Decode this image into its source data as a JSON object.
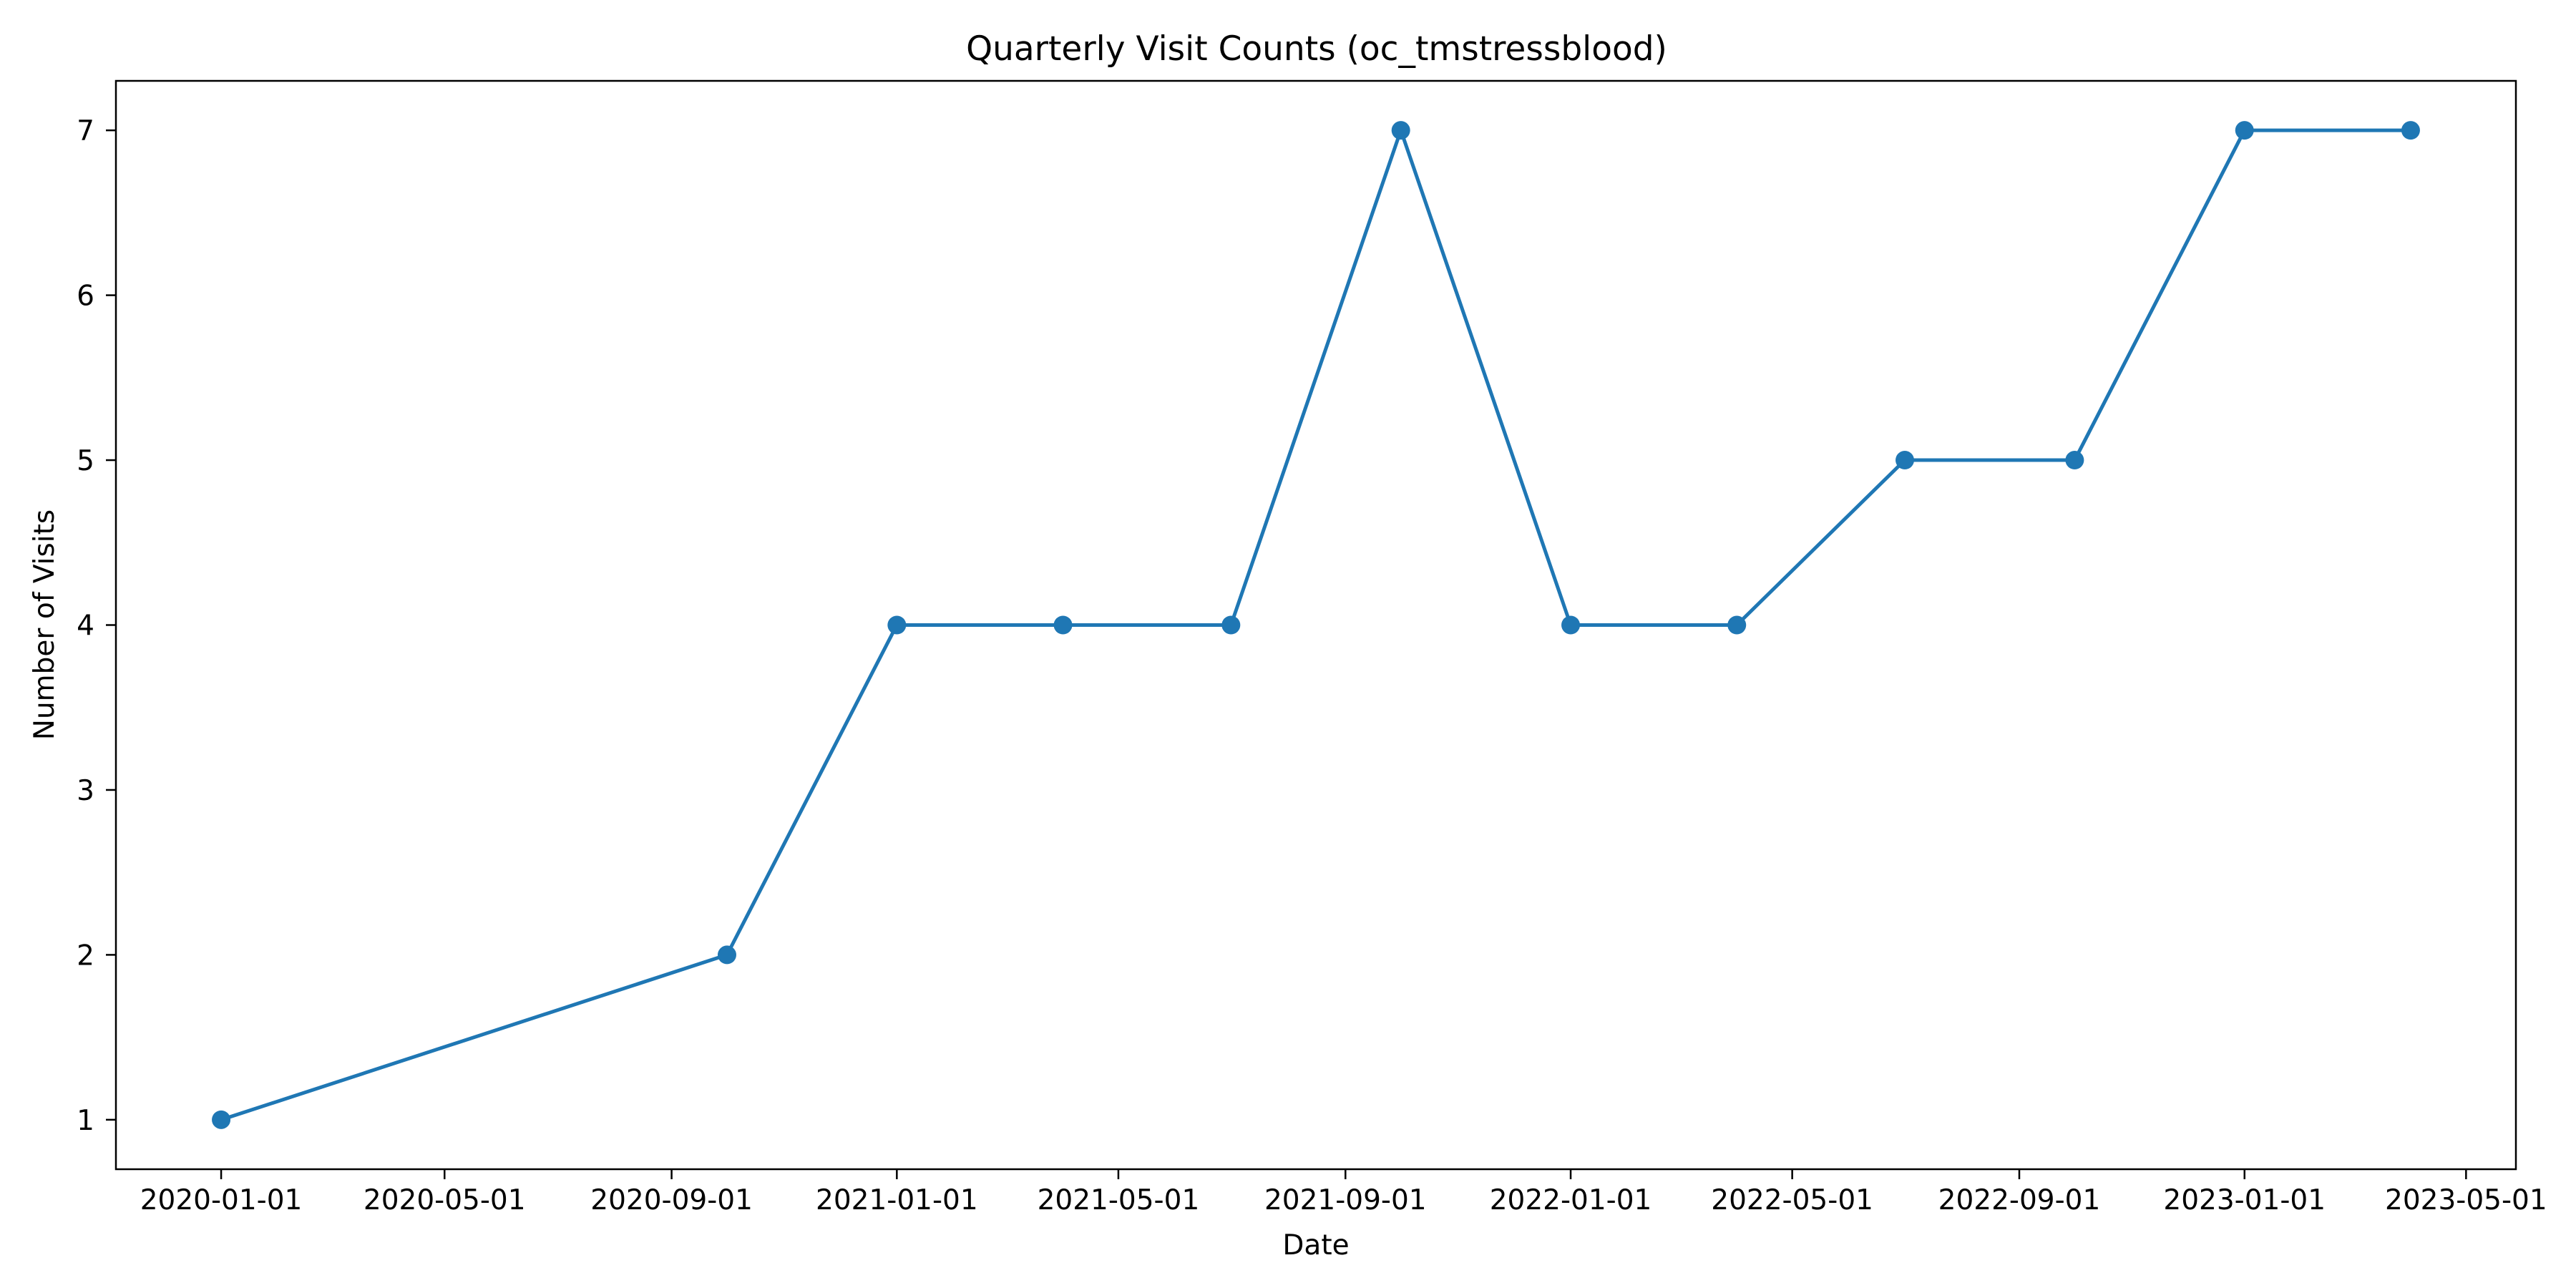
{
  "chart_data": {
    "type": "line",
    "title": "Quarterly Visit Counts (oc_tmstressblood)",
    "xlabel": "Date",
    "ylabel": "Number of Visits",
    "x_type": "date",
    "x_ticks": [
      "2020-01-01",
      "2020-05-01",
      "2020-09-01",
      "2021-01-01",
      "2021-05-01",
      "2021-09-01",
      "2022-01-01",
      "2022-05-01",
      "2022-09-01",
      "2023-01-01",
      "2023-05-01"
    ],
    "y_ticks": [
      1,
      2,
      3,
      4,
      5,
      6,
      7
    ],
    "xlim": [
      "2019-11-05",
      "2023-05-28"
    ],
    "ylim": [
      0.7,
      7.3
    ],
    "grid": false,
    "series": [
      {
        "color": "#1f77b4",
        "marker": "circle",
        "points": [
          {
            "x": "2020-01-01",
            "y": 1
          },
          {
            "x": "2020-10-01",
            "y": 2
          },
          {
            "x": "2021-01-01",
            "y": 4
          },
          {
            "x": "2021-04-01",
            "y": 4
          },
          {
            "x": "2021-07-01",
            "y": 4
          },
          {
            "x": "2021-10-01",
            "y": 7
          },
          {
            "x": "2022-01-01",
            "y": 4
          },
          {
            "x": "2022-04-01",
            "y": 4
          },
          {
            "x": "2022-07-01",
            "y": 5
          },
          {
            "x": "2022-10-01",
            "y": 5
          },
          {
            "x": "2023-01-01",
            "y": 7
          },
          {
            "x": "2023-04-01",
            "y": 7
          }
        ]
      }
    ]
  }
}
